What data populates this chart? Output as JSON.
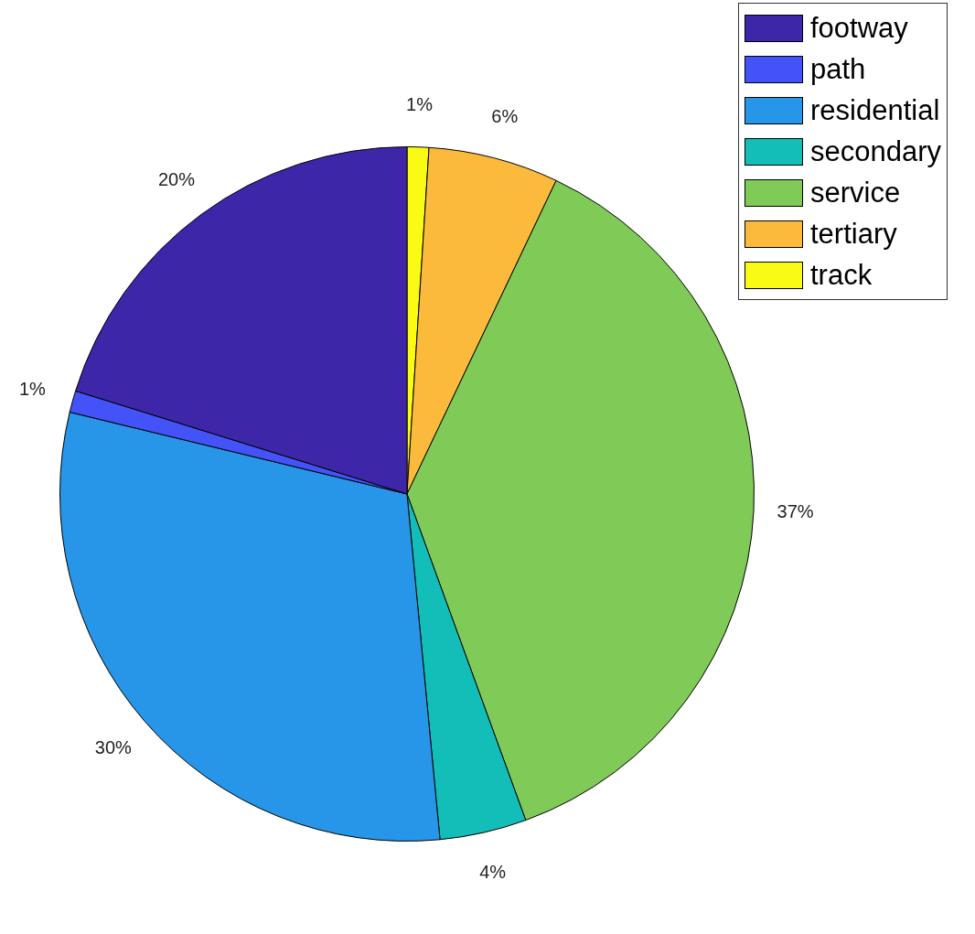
{
  "chart_data": {
    "type": "pie",
    "categories": [
      "footway",
      "path",
      "residential",
      "secondary",
      "service",
      "tertiary",
      "track"
    ],
    "values": [
      20,
      1,
      30,
      4,
      37,
      6,
      1
    ],
    "colors": [
      "#3e26a8",
      "#4353f8",
      "#2896e8",
      "#13bdb8",
      "#80cb58",
      "#fcba3d",
      "#f9fb15"
    ],
    "value_labels": [
      "20%",
      "1%",
      "30%",
      "4%",
      "37%",
      "6%",
      "1%"
    ],
    "legend": "top right"
  }
}
